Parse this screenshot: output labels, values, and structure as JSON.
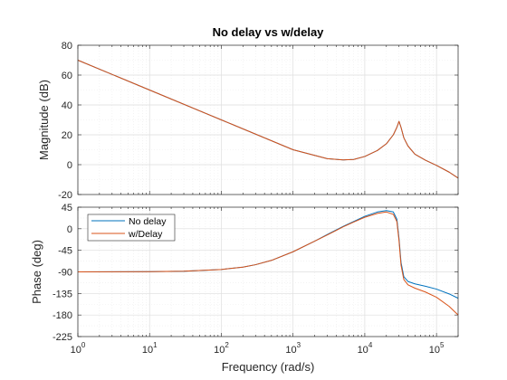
{
  "chart_data": [
    {
      "type": "line",
      "title": "No delay vs w/delay",
      "xlabel": "",
      "ylabel": "Magnitude (dB)",
      "xscale": "log",
      "xlim": [
        1,
        200000
      ],
      "ylim": [
        -20,
        80
      ],
      "yticks": [
        "-20",
        "0",
        "20",
        "40",
        "60",
        "80"
      ],
      "grid": true,
      "minor_grid": true,
      "series": [
        {
          "color": "#0072BD",
          "x": [
            1,
            10,
            100,
            1000,
            3000,
            5000,
            7000,
            10000,
            15000,
            20000,
            25000,
            28000,
            30000,
            32000,
            35000,
            40000,
            50000,
            70000,
            100000,
            150000,
            200000
          ],
          "y": [
            70,
            50,
            30,
            10,
            4,
            3.2,
            3.5,
            5.5,
            9.5,
            14,
            20,
            25,
            29,
            25,
            18,
            12.5,
            7,
            3,
            -0.5,
            -5,
            -9
          ]
        },
        {
          "color": "#D95319",
          "x": [
            1,
            10,
            100,
            1000,
            3000,
            5000,
            7000,
            10000,
            15000,
            20000,
            25000,
            28000,
            30000,
            32000,
            35000,
            40000,
            50000,
            70000,
            100000,
            150000,
            200000
          ],
          "y": [
            70,
            50,
            30,
            10,
            4,
            3.2,
            3.5,
            5.5,
            9.5,
            14,
            20,
            25,
            29,
            25,
            18,
            12.5,
            7,
            3,
            -0.5,
            -5,
            -9
          ]
        }
      ]
    },
    {
      "type": "line",
      "xlabel": "Frequency  (rad/s)",
      "ylabel": "Phase (deg)",
      "xscale": "log",
      "xlim": [
        1,
        200000
      ],
      "ylim": [
        -225,
        45
      ],
      "yticks": [
        "-225",
        "-180",
        "-135",
        "-90",
        "-45",
        "0",
        "45"
      ],
      "xticks": [
        {
          "base": "10",
          "exp": "0"
        },
        {
          "base": "10",
          "exp": "1"
        },
        {
          "base": "10",
          "exp": "2"
        },
        {
          "base": "10",
          "exp": "3"
        },
        {
          "base": "10",
          "exp": "4"
        },
        {
          "base": "10",
          "exp": "5"
        }
      ],
      "grid": true,
      "minor_grid": true,
      "legend": "top-left",
      "series": [
        {
          "name": "No delay",
          "color": "#0072BD",
          "x": [
            1,
            10,
            30,
            100,
            200,
            300,
            500,
            1000,
            2000,
            3000,
            5000,
            7000,
            10000,
            15000,
            20000,
            25000,
            28000,
            30000,
            32000,
            35000,
            40000,
            50000,
            70000,
            100000,
            150000,
            200000
          ],
          "y": [
            -89.9,
            -89.5,
            -88.5,
            -85,
            -80,
            -75,
            -66,
            -48,
            -26,
            -12,
            5,
            15,
            26,
            35,
            38,
            35,
            20,
            -20,
            -70,
            -100,
            -110,
            -115,
            -120,
            -126,
            -136,
            -145
          ]
        },
        {
          "name": "w/Delay",
          "color": "#D95319",
          "x": [
            1,
            10,
            30,
            100,
            200,
            300,
            500,
            1000,
            2000,
            3000,
            5000,
            7000,
            10000,
            15000,
            20000,
            25000,
            28000,
            30000,
            32000,
            35000,
            40000,
            50000,
            70000,
            100000,
            150000,
            200000
          ],
          "y": [
            -90,
            -89.6,
            -88.6,
            -85,
            -80,
            -75,
            -66,
            -48,
            -26,
            -13,
            4,
            14,
            24,
            32,
            35,
            30,
            15,
            -25,
            -76,
            -106,
            -117,
            -124,
            -132,
            -143,
            -162,
            -180
          ]
        }
      ]
    }
  ]
}
